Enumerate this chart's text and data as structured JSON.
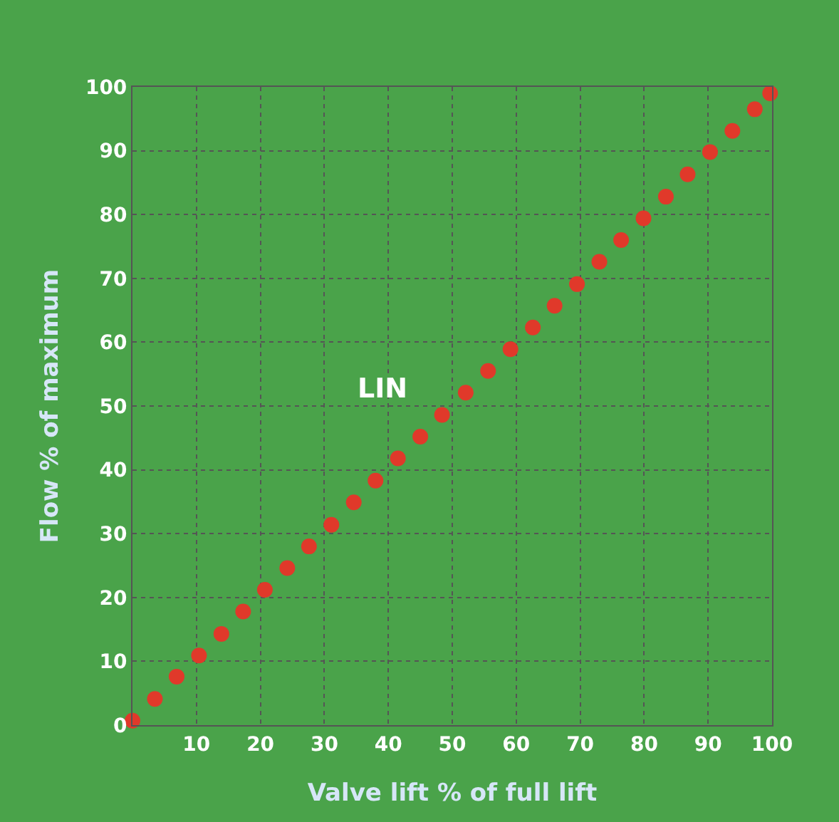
{
  "chart_data": {
    "type": "scatter",
    "xlabel": "Valve lift % of full lift",
    "ylabel": "Flow % of maximum",
    "x": [
      0,
      3.5,
      6.9,
      10.4,
      13.9,
      17.3,
      20.7,
      24.2,
      27.6,
      31.1,
      34.6,
      38.0,
      41.5,
      45.0,
      48.4,
      52.1,
      55.6,
      59.1,
      62.6,
      66.0,
      69.5,
      73.0,
      76.4,
      79.9,
      83.4,
      86.8,
      90.3,
      93.8,
      97.3,
      99.7
    ],
    "series": [
      {
        "color": "#e0392a",
        "values": [
          0.7,
          4.1,
          7.6,
          10.9,
          14.3,
          17.8,
          21.2,
          24.6,
          28.0,
          31.4,
          34.9,
          38.3,
          41.8,
          45.2,
          48.6,
          52.1,
          55.5,
          58.9,
          62.3,
          65.7,
          69.1,
          72.6,
          76.0,
          79.4,
          82.8,
          86.3,
          89.8,
          93.1,
          96.5,
          99.0
        ]
      }
    ],
    "xlim": [
      0,
      100
    ],
    "ylim": [
      0,
      100
    ],
    "xticks": [
      10,
      20,
      30,
      40,
      50,
      60,
      70,
      80,
      90,
      100
    ],
    "yticks": [
      0,
      10,
      20,
      30,
      40,
      50,
      60,
      70,
      80,
      90,
      100
    ],
    "annotations": [
      "LIN"
    ],
    "grid": true,
    "marker": "circle"
  }
}
